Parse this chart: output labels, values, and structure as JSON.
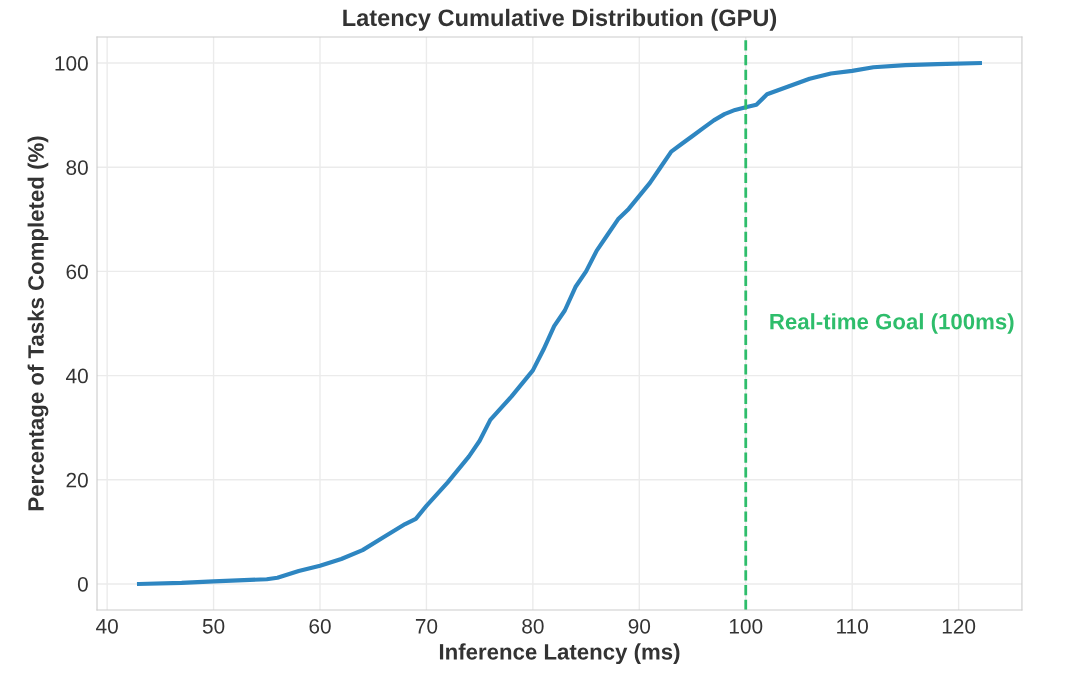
{
  "chart_data": {
    "type": "line",
    "title": "Latency Cumulative Distribution (GPU)",
    "xlabel": "Inference Latency (ms)",
    "ylabel": "Percentage of Tasks Completed (%)",
    "x": [
      43,
      47,
      50,
      55,
      56,
      58,
      60,
      62,
      64,
      66,
      68,
      69,
      70,
      72,
      74,
      75,
      76,
      78,
      80,
      81,
      82,
      83,
      84,
      85,
      86,
      87,
      88,
      89,
      90,
      91,
      92,
      93,
      94,
      95,
      96,
      97,
      98,
      99,
      100,
      101,
      102,
      104,
      106,
      108,
      110,
      112,
      115,
      118,
      122
    ],
    "series": [
      {
        "color": "#2e86c1",
        "values": [
          0,
          0.2,
          0.5,
          0.9,
          1.2,
          2.5,
          3.5,
          4.8,
          6.5,
          9,
          11.5,
          12.5,
          15,
          19.5,
          24.5,
          27.5,
          31.5,
          36,
          41,
          45,
          49.5,
          52.5,
          57,
          60,
          64,
          67,
          70,
          72,
          74.5,
          77,
          80,
          83,
          84.5,
          86,
          87.5,
          89,
          90.2,
          91,
          91.5,
          92,
          94,
          95.5,
          97,
          98,
          98.5,
          99.2,
          99.6,
          99.8,
          100
        ]
      }
    ],
    "xlim": [
      39.05,
      125.95
    ],
    "xticks": [
      40,
      50,
      60,
      70,
      80,
      90,
      100,
      110,
      120
    ],
    "ylim": [
      -5,
      105
    ],
    "yticks": [
      0,
      20,
      40,
      60,
      80,
      100
    ],
    "ref_lines": [
      {
        "axis": "x",
        "value": 100,
        "label": "Real-time Goal (100ms)",
        "color": "#2ebd6b",
        "line_style": "dashed"
      }
    ],
    "grid": true,
    "marker": "none",
    "line_style": "solid"
  }
}
